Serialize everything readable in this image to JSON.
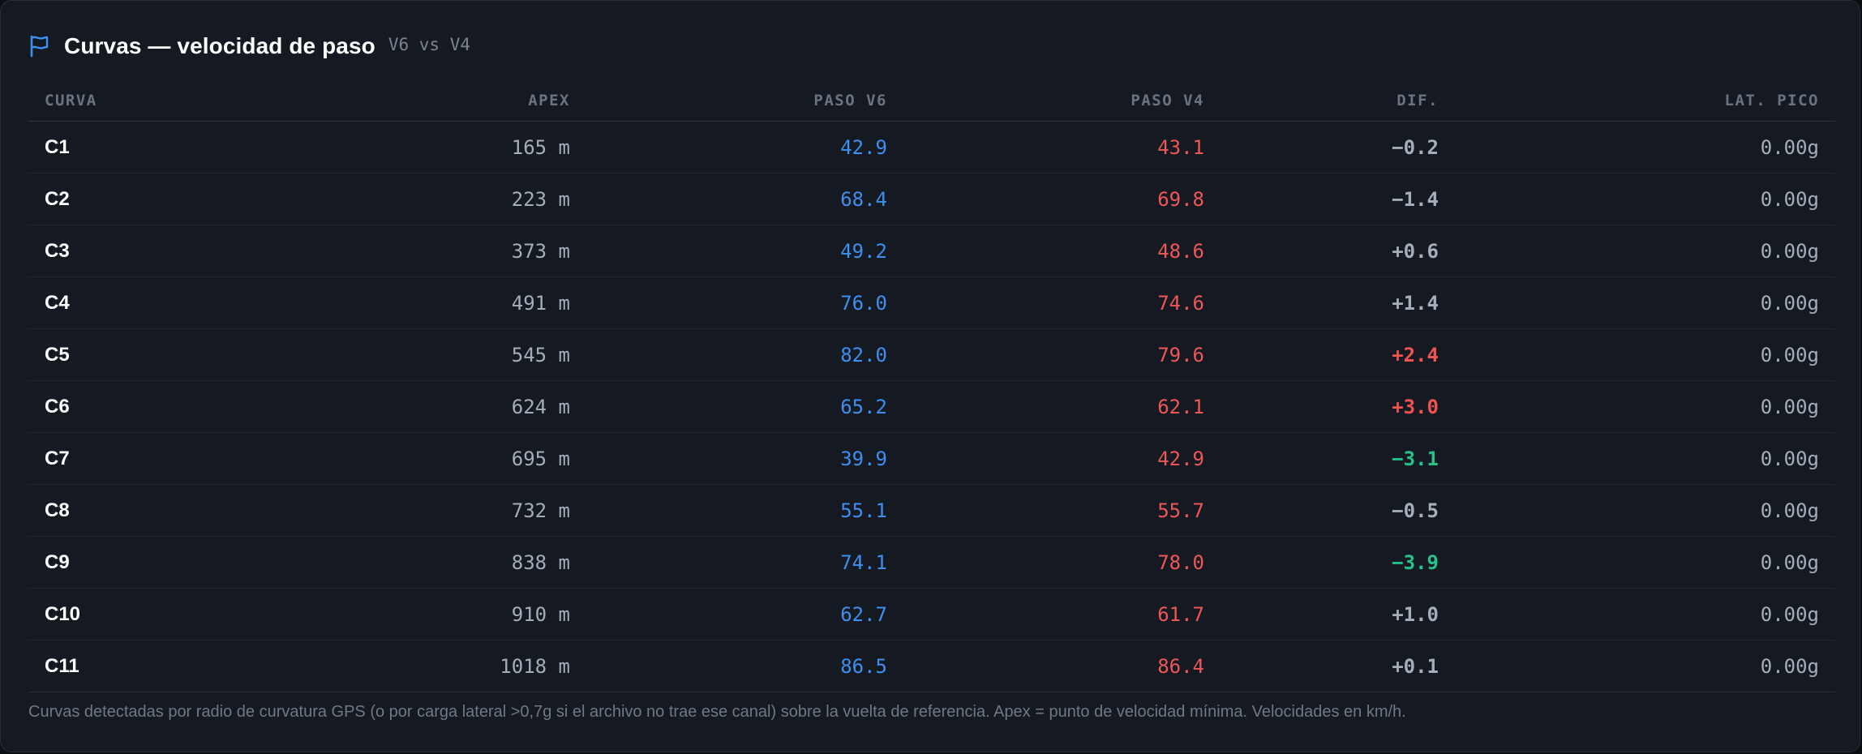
{
  "header": {
    "title": "Curvas — velocidad de paso",
    "subtitle": "V6 vs V4",
    "icon": "flag-icon"
  },
  "colors": {
    "v6": "#3d8ff0",
    "v4": "#ef5656",
    "diff_positive": "#f05252",
    "diff_negative": "#26c28a",
    "diff_neutral": "#a6aeb9"
  },
  "table": {
    "columns": [
      "CURVA",
      "APEX",
      "PASO V6",
      "PASO V4",
      "DIF.",
      "LAT. PICO"
    ],
    "rows": [
      {
        "curve": "C1",
        "apex": "165 m",
        "v6": "42.9",
        "v4": "43.1",
        "diff": "−0.2",
        "diff_tone": "neutral",
        "lat": "0.00g"
      },
      {
        "curve": "C2",
        "apex": "223 m",
        "v6": "68.4",
        "v4": "69.8",
        "diff": "−1.4",
        "diff_tone": "neutral",
        "lat": "0.00g"
      },
      {
        "curve": "C3",
        "apex": "373 m",
        "v6": "49.2",
        "v4": "48.6",
        "diff": "+0.6",
        "diff_tone": "neutral",
        "lat": "0.00g"
      },
      {
        "curve": "C4",
        "apex": "491 m",
        "v6": "76.0",
        "v4": "74.6",
        "diff": "+1.4",
        "diff_tone": "neutral",
        "lat": "0.00g"
      },
      {
        "curve": "C5",
        "apex": "545 m",
        "v6": "82.0",
        "v4": "79.6",
        "diff": "+2.4",
        "diff_tone": "pos",
        "lat": "0.00g"
      },
      {
        "curve": "C6",
        "apex": "624 m",
        "v6": "65.2",
        "v4": "62.1",
        "diff": "+3.0",
        "diff_tone": "pos",
        "lat": "0.00g"
      },
      {
        "curve": "C7",
        "apex": "695 m",
        "v6": "39.9",
        "v4": "42.9",
        "diff": "−3.1",
        "diff_tone": "neg",
        "lat": "0.00g"
      },
      {
        "curve": "C8",
        "apex": "732 m",
        "v6": "55.1",
        "v4": "55.7",
        "diff": "−0.5",
        "diff_tone": "neutral",
        "lat": "0.00g"
      },
      {
        "curve": "C9",
        "apex": "838 m",
        "v6": "74.1",
        "v4": "78.0",
        "diff": "−3.9",
        "diff_tone": "neg",
        "lat": "0.00g"
      },
      {
        "curve": "C10",
        "apex": "910 m",
        "v6": "62.7",
        "v4": "61.7",
        "diff": "+1.0",
        "diff_tone": "neutral",
        "lat": "0.00g"
      },
      {
        "curve": "C11",
        "apex": "1018 m",
        "v6": "86.5",
        "v4": "86.4",
        "diff": "+0.1",
        "diff_tone": "neutral",
        "lat": "0.00g"
      }
    ]
  },
  "footnote": "Curvas detectadas por radio de curvatura GPS (o por carga lateral >0,7g si el archivo no trae ese canal) sobre la vuelta de referencia. Apex = punto de velocidad mínima. Velocidades en km/h."
}
